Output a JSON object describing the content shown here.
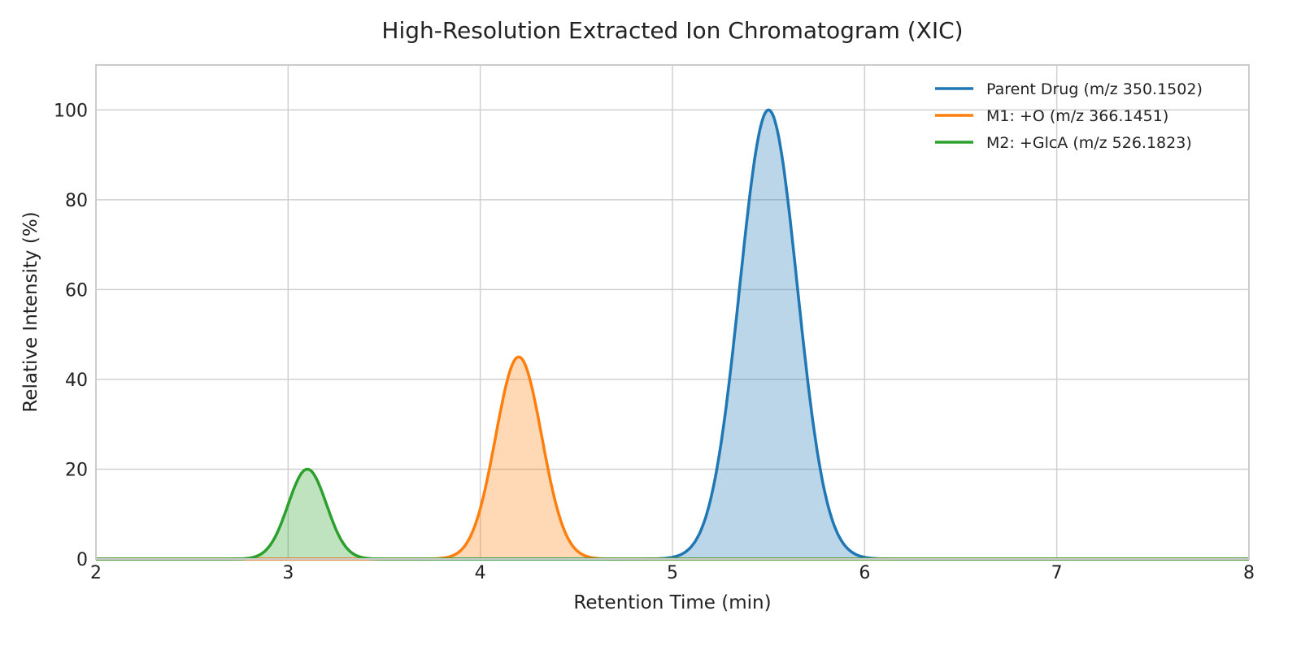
{
  "chart_data": {
    "type": "area",
    "title": "High-Resolution Extracted Ion Chromatogram (XIC)",
    "xlabel": "Retention Time (min)",
    "ylabel": "Relative Intensity (%)",
    "xlim": [
      2,
      8
    ],
    "ylim": [
      0,
      110
    ],
    "x_ticks": [
      2,
      3,
      4,
      5,
      6,
      7,
      8
    ],
    "y_ticks": [
      0,
      20,
      40,
      60,
      80,
      100
    ],
    "grid": true,
    "legend_position": "top-right",
    "series": [
      {
        "name": "Parent Drug (m/z 350.1502)",
        "color": "#1f77b4",
        "peak_rt": 5.5,
        "peak_intensity": 100,
        "sigma": 0.15
      },
      {
        "name": "M1: +O (m/z 366.1451)",
        "color": "#ff7f0e",
        "peak_rt": 4.2,
        "peak_intensity": 45,
        "sigma": 0.12
      },
      {
        "name": "M2: +GlcA (m/z 526.1823)",
        "color": "#2ca02c",
        "peak_rt": 3.1,
        "peak_intensity": 20,
        "sigma": 0.1
      }
    ]
  }
}
